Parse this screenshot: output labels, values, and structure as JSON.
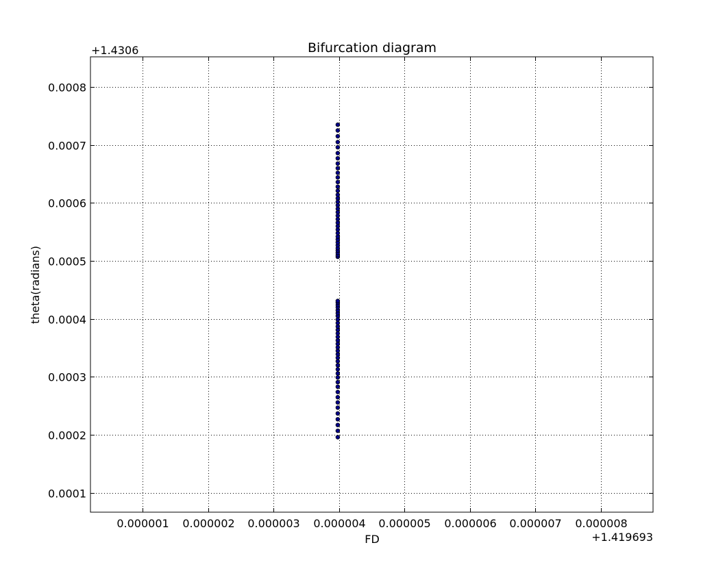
{
  "chart_data": {
    "type": "scatter",
    "title": "Bifurcation diagram",
    "xlabel": "FD",
    "ylabel": "theta(radians)",
    "x_offset_label": "+1.419693",
    "y_offset_label": "+1.4306",
    "xlim": [
      2e-07,
      8.8e-06
    ],
    "ylim": [
      6.67e-05,
      0.000852
    ],
    "x_ticks": [
      {
        "value": 1e-06,
        "label": "0.000001"
      },
      {
        "value": 2e-06,
        "label": "0.000002"
      },
      {
        "value": 3e-06,
        "label": "0.000003"
      },
      {
        "value": 4e-06,
        "label": "0.000004"
      },
      {
        "value": 5e-06,
        "label": "0.000005"
      },
      {
        "value": 6e-06,
        "label": "0.000006"
      },
      {
        "value": 7e-06,
        "label": "0.000007"
      },
      {
        "value": 8e-06,
        "label": "0.000008"
      }
    ],
    "y_ticks": [
      {
        "value": 0.0001,
        "label": "0.0001"
      },
      {
        "value": 0.0002,
        "label": "0.0002"
      },
      {
        "value": 0.0003,
        "label": "0.0003"
      },
      {
        "value": 0.0004,
        "label": "0.0004"
      },
      {
        "value": 0.0005,
        "label": "0.0005"
      },
      {
        "value": 0.0006,
        "label": "0.0006"
      },
      {
        "value": 0.0007,
        "label": "0.0007"
      },
      {
        "value": 0.0008,
        "label": "0.0008"
      }
    ],
    "grid": true,
    "marker_color": "#00008b",
    "marker_edge_color": "#000000",
    "series": [
      {
        "x": [
          3.98e-06,
          3.98e-06,
          3.98e-06,
          3.98e-06,
          3.98e-06,
          3.98e-06,
          3.98e-06,
          3.98e-06,
          3.98e-06,
          3.98e-06,
          3.98e-06,
          3.98e-06,
          3.98e-06,
          3.98e-06,
          3.98e-06,
          3.98e-06,
          3.98e-06,
          3.98e-06,
          3.98e-06,
          3.98e-06,
          3.98e-06,
          3.98e-06,
          3.98e-06,
          3.98e-06,
          3.98e-06,
          3.98e-06,
          3.98e-06,
          3.98e-06,
          3.98e-06,
          3.98e-06,
          3.98e-06,
          3.98e-06,
          3.98e-06,
          3.98e-06,
          3.98e-06,
          3.98e-06,
          3.98e-06,
          3.98e-06,
          3.98e-06,
          3.98e-06,
          3.98e-06,
          3.98e-06,
          3.98e-06,
          3.98e-06,
          3.98e-06,
          3.98e-06,
          3.98e-06,
          3.98e-06,
          3.98e-06,
          3.98e-06,
          3.98e-06,
          3.98e-06,
          3.98e-06,
          3.98e-06,
          3.98e-06,
          3.98e-06,
          3.98e-06,
          3.98e-06,
          3.98e-06,
          3.98e-06,
          3.98e-06,
          3.98e-06,
          3.98e-06,
          3.98e-06,
          3.98e-06,
          3.98e-06,
          3.98e-06,
          3.98e-06,
          3.98e-06,
          3.98e-06
        ],
        "y": [
          0.000196,
          0.000207,
          0.000217,
          0.000227,
          0.000237,
          0.000247,
          0.000256,
          0.000265,
          0.000274,
          0.000283,
          0.000291,
          0.000299,
          0.000306,
          0.000313,
          0.00032,
          0.000327,
          0.000333,
          0.000339,
          0.000345,
          0.000351,
          0.000357,
          0.000363,
          0.000369,
          0.000375,
          0.000381,
          0.000387,
          0.000393,
          0.000399,
          0.000405,
          0.00041,
          0.000415,
          0.00042,
          0.000424,
          0.000428,
          0.000431,
          0.000507,
          0.00051,
          0.000514,
          0.000518,
          0.000522,
          0.000527,
          0.000532,
          0.000537,
          0.000542,
          0.000548,
          0.000554,
          0.00056,
          0.000566,
          0.000572,
          0.000578,
          0.000584,
          0.00059,
          0.000596,
          0.000602,
          0.000608,
          0.000614,
          0.000621,
          0.000628,
          0.000636,
          0.000644,
          0.000652,
          0.00066,
          0.000668,
          0.000677,
          0.000686,
          0.000696,
          0.000705,
          0.000715,
          0.000725,
          0.000735
        ]
      }
    ]
  }
}
